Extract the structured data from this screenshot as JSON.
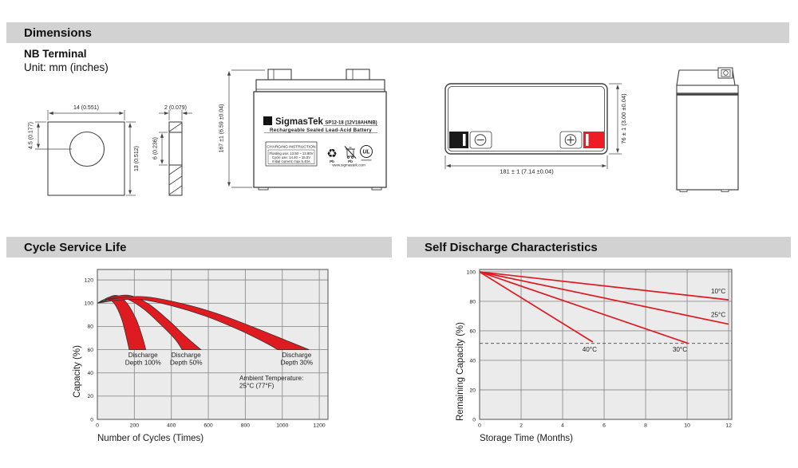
{
  "colors": {
    "terminal_red": "#ee1c25",
    "chart_red": "#dd1b21",
    "header_bg": "#d2d2d2"
  },
  "sections": {
    "dimensions": {
      "title": "Dimensions"
    },
    "cycle": {
      "title": "Cycle Service Life"
    },
    "self_discharge": {
      "title": "Self Discharge Characteristics"
    }
  },
  "dimensions": {
    "terminal_heading": "NB Terminal",
    "unit_note": "Unit: mm (inches)",
    "terminal_front": {
      "width_dim": "14 (0.551)",
      "hole_offset_dim": "4.5 (0.177)",
      "height_dim": "13 (0.512)"
    },
    "terminal_side": {
      "thickness_dim": "2 (0.079)",
      "inner_dim": "6 (0.236)"
    },
    "battery_front": {
      "height_dim": "167 ±1 (6.59 ±0.04)",
      "logo_glyph": "Σ",
      "brand": "SigmasTek",
      "model": "SP12-18 (12V18AH/NB)",
      "battery_type": "Rechargeable Sealed Lead-Acid Battery",
      "charging_title": "CHARGING INSTRUCTION",
      "charging_lines": [
        "Floating use: 13.50 ~ 13.80V",
        "Cycle use: 14.40 ~ 15.0V",
        "Initial current: max 5.40A"
      ],
      "recycle_glyph": "♻",
      "pb_recycle_caption": "Pb",
      "pb_bin_caption": "Pb",
      "ul_text": "UL",
      "website": "www.sigmastek.com"
    },
    "battery_top": {
      "width_dim": "181 ± 1 (7.14 ±0.04)",
      "depth_dim": "76 ± 1 (3.00 ±0.04)"
    }
  },
  "chart_data": [
    {
      "type": "area",
      "title": "Cycle Service Life",
      "xlabel": "Number of Cycles (Times)",
      "ylabel": "Capacity (%)",
      "xlim": [
        0,
        1247
      ],
      "ylim": [
        0,
        129
      ],
      "xticks": [
        0,
        200,
        400,
        600,
        800,
        1000,
        1200
      ],
      "yticks": [
        0,
        20,
        40,
        60,
        80,
        100,
        120
      ],
      "grid": true,
      "legend_position": "none",
      "band_color": "#dd1b21",
      "bands": [
        {
          "name": "Discharge Depth 100%",
          "upper": [
            [
              0,
              100
            ],
            [
              60,
              105
            ],
            [
              110,
              106.5
            ],
            [
              160,
              100
            ],
            [
              210,
              86
            ],
            [
              245,
              70
            ],
            [
              262,
              60
            ]
          ],
          "lower": [
            [
              0,
              100
            ],
            [
              45,
              103.5
            ],
            [
              90,
              100
            ],
            [
              130,
              87
            ],
            [
              158,
              70
            ],
            [
              172,
              60
            ]
          ]
        },
        {
          "name": "Discharge Depth 50%",
          "upper": [
            [
              0,
              100
            ],
            [
              90,
              105.5
            ],
            [
              180,
              106.5
            ],
            [
              280,
              99
            ],
            [
              380,
              86
            ],
            [
              480,
              71
            ],
            [
              560,
              60
            ]
          ],
          "lower": [
            [
              0,
              100
            ],
            [
              80,
              104
            ],
            [
              160,
              103.5
            ],
            [
              250,
              95
            ],
            [
              340,
              82
            ],
            [
              420,
              69
            ],
            [
              458,
              60
            ]
          ]
        },
        {
          "name": "Discharge Depth 30%",
          "upper": [
            [
              0,
              100
            ],
            [
              120,
              104.5
            ],
            [
              260,
              105.5
            ],
            [
              450,
              100
            ],
            [
              650,
              91
            ],
            [
              850,
              79
            ],
            [
              1020,
              68
            ],
            [
              1145,
              60
            ]
          ],
          "lower": [
            [
              0,
              100
            ],
            [
              110,
              102.5
            ],
            [
              240,
              103
            ],
            [
              420,
              97
            ],
            [
              600,
              88
            ],
            [
              780,
              76
            ],
            [
              920,
              65
            ],
            [
              975,
              60
            ]
          ]
        }
      ],
      "annotations": [
        {
          "lines": [
            "Discharge",
            "Depth 100%"
          ],
          "x": 247,
          "y": 53.5,
          "align": "middle"
        },
        {
          "lines": [
            "Discharge",
            "Depth 50%"
          ],
          "x": 480,
          "y": 53.5,
          "align": "middle"
        },
        {
          "lines": [
            "Discharge",
            "Depth 30%"
          ],
          "x": 1078,
          "y": 53.5,
          "align": "middle"
        },
        {
          "lines": [
            "Ambient Temperature:",
            "25°C (77°F)"
          ],
          "x": 768,
          "y": 33.5,
          "align": "start"
        }
      ]
    },
    {
      "type": "line",
      "title": "Self Discharge Characteristics",
      "xlabel": "Storage Time (Months)",
      "ylabel": "Remaining Capacity (%)",
      "xlim": [
        0,
        12.15
      ],
      "ylim": [
        0,
        101.6
      ],
      "xticks": [
        0,
        2,
        4,
        6,
        8,
        10,
        12
      ],
      "yticks": [
        0,
        20,
        40,
        60,
        80,
        100
      ],
      "grid": true,
      "legend_position": "inline-labels",
      "line_color": "#dd1b21",
      "dashed_y": 51.5,
      "series": [
        {
          "name": "10°C",
          "points": [
            [
              0,
              100
            ],
            [
              12,
              81
            ]
          ],
          "label_x": 11.5,
          "label_y": 85.5
        },
        {
          "name": "25°C",
          "points": [
            [
              0,
              100
            ],
            [
              12,
              64.5
            ]
          ],
          "label_x": 11.5,
          "label_y": 69.5
        },
        {
          "name": "30°C",
          "points": [
            [
              0,
              100
            ],
            [
              10.05,
              51.5
            ]
          ],
          "label_x": 9.65,
          "label_y": 46
        },
        {
          "name": "40°C",
          "points": [
            [
              0,
              100
            ],
            [
              5.45,
              52.5
            ]
          ],
          "label_x": 5.3,
          "label_y": 46
        }
      ]
    }
  ]
}
